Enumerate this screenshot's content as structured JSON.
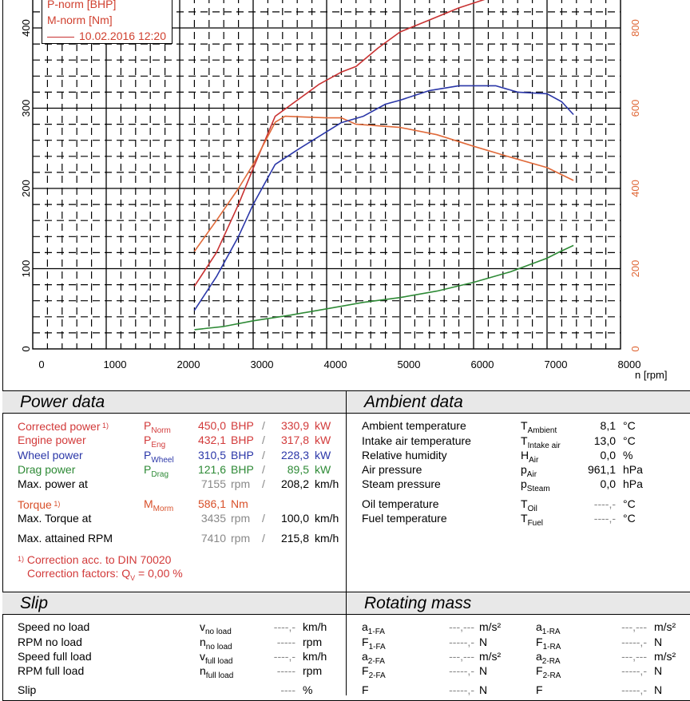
{
  "chart_data": {
    "type": "line",
    "title": "",
    "xlabel": "n [rpm]",
    "ylabel_left": "P-norm [BHP]",
    "ylabel_right": "M-norm [Nm]",
    "xlim": [
      0,
      8000
    ],
    "ylim_left": [
      0,
      440
    ],
    "ylim_right": [
      0,
      880
    ],
    "x_ticks": [
      "0",
      "1000",
      "2000",
      "3000",
      "4000",
      "5000",
      "6000",
      "7000",
      "8000"
    ],
    "y_ticks_left": [
      "0",
      "100",
      "200",
      "300",
      "400"
    ],
    "y_ticks_right": [
      "0",
      "200",
      "400",
      "600",
      "800"
    ],
    "grid": true,
    "legend": {
      "entries": [
        "P-norm [BHP]",
        "M-norm [Nm]"
      ],
      "run_label": "10.02.2016 12:20",
      "position": "top-left"
    },
    "series": [
      {
        "name": "P-norm [BHP]",
        "axis": "left",
        "color": "#c83232",
        "x": [
          2200,
          2500,
          2800,
          3000,
          3300,
          3600,
          3900,
          4200,
          4400,
          4700,
          5000,
          5400,
          5800,
          6200
        ],
        "values": [
          78,
          120,
          180,
          225,
          290,
          310,
          330,
          345,
          352,
          375,
          395,
          410,
          425,
          437
        ]
      },
      {
        "name": "M-norm [Nm]",
        "axis": "right",
        "color": "#e06a3a",
        "x": [
          2200,
          2500,
          2800,
          3000,
          3300,
          3435,
          3700,
          4000,
          4200,
          4400,
          4700,
          5000,
          5500,
          6000,
          6500,
          7000,
          7360
        ],
        "values": [
          243,
          320,
          400,
          460,
          565,
          580,
          578,
          576,
          576,
          560,
          556,
          552,
          534,
          505,
          478,
          452,
          420
        ]
      },
      {
        "name": "Wheel power [BHP]",
        "axis": "left",
        "color": "#2b37a8",
        "x": [
          2200,
          2500,
          2800,
          3000,
          3300,
          3600,
          3900,
          4200,
          4500,
          4800,
          5000,
          5400,
          5800,
          6000,
          6300,
          6600,
          7000,
          7200,
          7360
        ],
        "values": [
          48,
          90,
          140,
          180,
          230,
          248,
          265,
          282,
          290,
          305,
          310,
          322,
          328,
          328,
          328,
          320,
          318,
          308,
          292
        ]
      },
      {
        "name": "Drag power [BHP]",
        "axis": "left",
        "color": "#2e8a36",
        "x": [
          2200,
          2600,
          3000,
          3500,
          4000,
          4500,
          5000,
          5500,
          6000,
          6500,
          7000,
          7150,
          7360
        ],
        "values": [
          24,
          28,
          35,
          42,
          50,
          58,
          64,
          72,
          83,
          96,
          113,
          120,
          129
        ]
      }
    ]
  },
  "power_data": {
    "title": "Power data",
    "rows": [
      {
        "label": "Corrected power",
        "footnote": "1)",
        "sym": "P",
        "sub": "Norm",
        "v1": "450,0",
        "u1": "BHP",
        "sep": "/",
        "v2": "330,9",
        "u2": "kW",
        "color": "red"
      },
      {
        "label": "Engine power",
        "sym": "P",
        "sub": "Eng",
        "v1": "432,1",
        "u1": "BHP",
        "sep": "/",
        "v2": "317,8",
        "u2": "kW",
        "color": "red"
      },
      {
        "label": "Wheel power",
        "sym": "P",
        "sub": "Wheel",
        "v1": "310,5",
        "u1": "BHP",
        "sep": "/",
        "v2": "228,3",
        "u2": "kW",
        "color": "blue"
      },
      {
        "label": "Drag power",
        "sym": "P",
        "sub": "Drag",
        "v1": "121,6",
        "u1": "BHP",
        "sep": "/",
        "v2": "89,5",
        "u2": "kW",
        "color": "green"
      },
      {
        "label": "Max. power at",
        "v1": "7155",
        "u1": "rpm",
        "sep": "/",
        "v2": "208,2",
        "u2": "km/h",
        "color": "black"
      }
    ],
    "torque": {
      "label": "Torque",
      "footnote": "1)",
      "sym": "M",
      "sub": "Morm",
      "value": "586,1",
      "unit": "Nm"
    },
    "max_torque_at": {
      "label": "Max. Torque at",
      "v1": "3435",
      "u1": "rpm",
      "sep": "/",
      "v2": "100,0",
      "u2": "km/h"
    },
    "max_rpm": {
      "label": "Max. attained RPM",
      "v1": "7410",
      "u1": "rpm",
      "sep": "/",
      "v2": "215,8",
      "u2": "km/h"
    },
    "note_marker": "1)",
    "note_line1": "Correction acc. to DIN 70020",
    "note_line2_prefix": "Correction factors: Q",
    "note_line2_sub": "V",
    "note_line2_value": " =   0,00 %"
  },
  "ambient_data": {
    "title": "Ambient data",
    "rows": [
      {
        "label": "Ambient temperature",
        "sym": "T",
        "sub": "Ambient",
        "value": "8,1",
        "unit": "°C"
      },
      {
        "label": "Intake air temperature",
        "sym": "T",
        "sub": "Intake air",
        "value": "13,0",
        "unit": "°C"
      },
      {
        "label": "Relative humidity",
        "sym": "H",
        "sub": "Air",
        "value": "0,0",
        "unit": "%"
      },
      {
        "label": "Air pressure",
        "sym": "p",
        "sub": "Air",
        "value": "961,1",
        "unit": "hPa"
      },
      {
        "label": "Steam pressure",
        "sym": "p",
        "sub": "Steam",
        "value": "0,0",
        "unit": "hPa"
      },
      {
        "label": "Oil temperature",
        "sym": "T",
        "sub": "Oil",
        "value": "----,-",
        "unit": "°C"
      },
      {
        "label": "Fuel temperature",
        "sym": "T",
        "sub": "Fuel",
        "value": "----,-",
        "unit": "°C"
      }
    ]
  },
  "slip": {
    "title": "Slip",
    "rows": [
      {
        "label": "Speed no load",
        "sym": "v",
        "sub": "no load",
        "value": "----,-",
        "unit": "km/h"
      },
      {
        "label": "RPM no load",
        "sym": "n",
        "sub": "no load",
        "value": "-----",
        "unit": "rpm"
      },
      {
        "label": "Speed full load",
        "sym": "v",
        "sub": "full load",
        "value": "----,-",
        "unit": "km/h"
      },
      {
        "label": "RPM full load",
        "sym": "n",
        "sub": "full load",
        "value": "-----",
        "unit": "rpm"
      },
      {
        "label": "Slip",
        "sym": "",
        "sub": "",
        "value": "----",
        "unit": "%"
      }
    ]
  },
  "rotating_mass": {
    "title": "Rotating mass",
    "rows": [
      {
        "sym1": "a",
        "sub1": "1-FA",
        "val1": "---,---",
        "unit1": "m/s²",
        "sym2": "a",
        "sub2": "1-RA",
        "val2": "---,---",
        "unit2": "m/s²"
      },
      {
        "sym1": "F",
        "sub1": "1-FA",
        "val1": "-----,-",
        "unit1": "N",
        "sym2": "F",
        "sub2": "1-RA",
        "val2": "-----,-",
        "unit2": "N"
      },
      {
        "sym1": "a",
        "sub1": "2-FA",
        "val1": "---,---",
        "unit1": "m/s²",
        "sym2": "a",
        "sub2": "2-RA",
        "val2": "---,---",
        "unit2": "m/s²"
      },
      {
        "sym1": "F",
        "sub1": "2-FA",
        "val1": "-----,-",
        "unit1": "N",
        "sym2": "F",
        "sub2": "2-RA",
        "val2": "-----,-",
        "unit2": "N"
      },
      {
        "sym1": "F",
        "sub1": "",
        "val1": "-----,-",
        "unit1": "N",
        "sym2": "F",
        "sub2": "",
        "val2": "-----,-",
        "unit2": "N"
      }
    ]
  }
}
